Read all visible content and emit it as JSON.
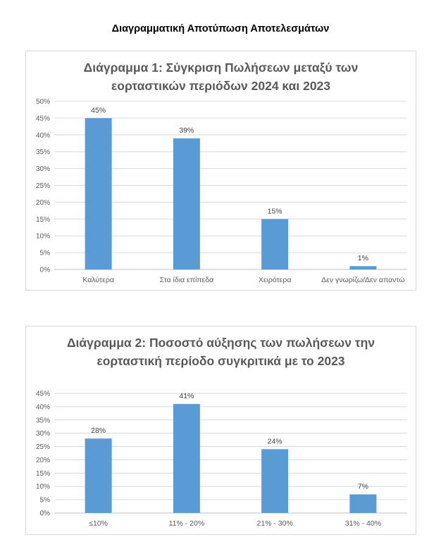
{
  "heading": "Διαγραμματική Αποτύπωση Αποτελεσμάτων",
  "colors": {
    "bar": "#5b9bd5",
    "grid": "#d9d9d9",
    "text": "#595959"
  },
  "chart_data": [
    {
      "type": "bar",
      "title_line1": "Διάγραμμα 1: Σύγκριση Πωλήσεων μεταξύ των",
      "title_line2": "εορταστικών περιόδων 2024 και 2023",
      "categories": [
        "Καλύτερα",
        "Στα ίδια επίπεδα",
        "Χειρότερα",
        "Δεν γνωρίζω/Δεν απαντώ"
      ],
      "values": [
        45,
        39,
        15,
        1
      ],
      "data_labels": [
        "45%",
        "39%",
        "15%",
        "1%"
      ],
      "ylim": [
        0,
        50
      ],
      "yticks": [
        "0%",
        "5%",
        "10%",
        "15%",
        "20%",
        "25%",
        "30%",
        "35%",
        "40%",
        "45%",
        "50%"
      ],
      "grid": true,
      "xlabel": "",
      "ylabel": ""
    },
    {
      "type": "bar",
      "title_line1": "Διάγραμμα 2: Ποσοστό αύξησης των πωλήσεων την",
      "title_line2": "εορταστική περίοδο συγκριτικά με το 2023",
      "categories": [
        "≤10%",
        "11% - 20%",
        "21% - 30%",
        "31% - 40%"
      ],
      "values": [
        28,
        41,
        24,
        7
      ],
      "data_labels": [
        "28%",
        "41%",
        "24%",
        "7%"
      ],
      "ylim": [
        0,
        45
      ],
      "yticks": [
        "0%",
        "5%",
        "10%",
        "15%",
        "20%",
        "25%",
        "30%",
        "35%",
        "40%",
        "45%"
      ],
      "grid": true,
      "xlabel": "",
      "ylabel": ""
    }
  ]
}
